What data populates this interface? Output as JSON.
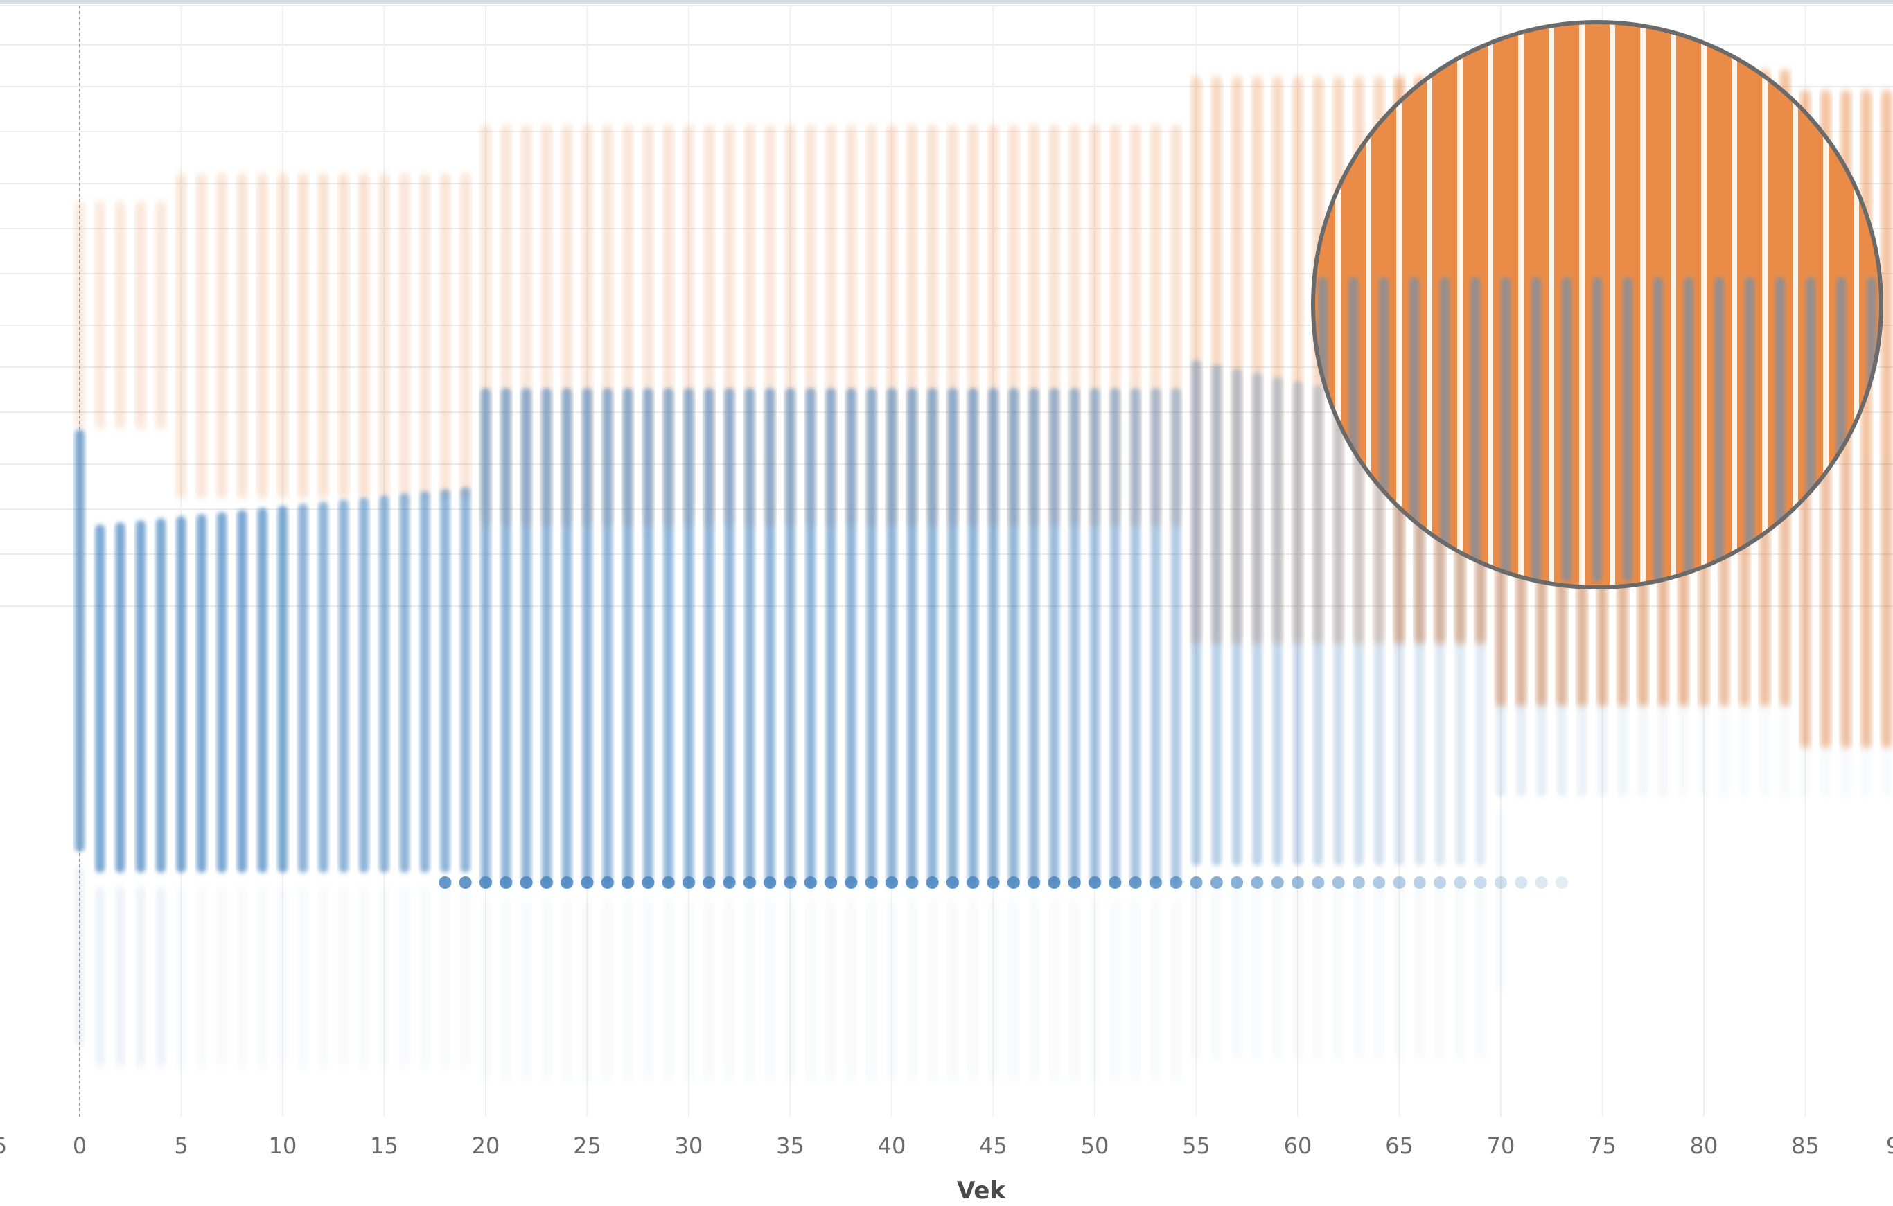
{
  "chart_data": {
    "type": "scatter",
    "title": "",
    "xlabel": "Vek",
    "ylabel": "",
    "xlim": [
      -5,
      90
    ],
    "xticks": [
      0,
      5,
      10,
      15,
      20,
      25,
      30,
      35,
      40,
      45,
      50,
      55,
      60,
      65,
      70,
      75,
      80,
      85
    ],
    "x_tick_labels": [
      "0",
      "5",
      "10",
      "15",
      "20",
      "25",
      "30",
      "35",
      "40",
      "45",
      "50",
      "55",
      "60",
      "65",
      "70",
      "75",
      "80",
      "85"
    ],
    "partial_tick_labels": {
      "left": "5",
      "right": "9"
    },
    "x_values": "integer ages 0 to 93, one dense vertical column of translucent points per age",
    "grid": true,
    "zero_reference_line": true,
    "legend": "none",
    "series": [
      {
        "color": "#4a86c0",
        "dominant_ages": [
          0,
          65
        ]
      },
      {
        "color": "#e8853f",
        "dominant_ages": [
          60,
          93
        ]
      }
    ],
    "horizontal_band_ages": [
      18,
      73
    ],
    "zoom_callout": {
      "present": true,
      "center_age": 75
    }
  }
}
